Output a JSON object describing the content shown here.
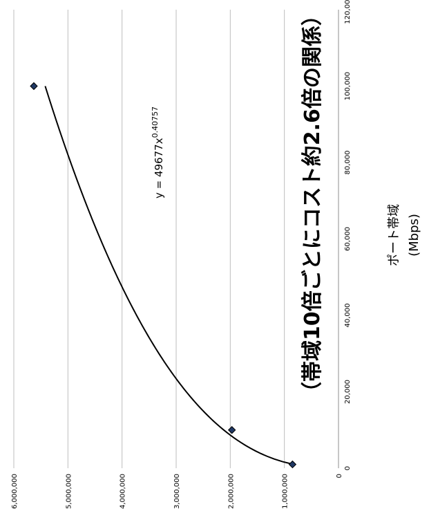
{
  "chart_data": {
    "type": "scatter",
    "x_values": [
      1000,
      10000,
      100000
    ],
    "y_values": [
      850000,
      1970000,
      5630000
    ],
    "xlim": [
      0,
      120000
    ],
    "ylim": [
      0,
      6000000
    ],
    "x_ticks": [
      "0",
      "20,000",
      "40,000",
      "60,000",
      "80,000",
      "100,000",
      "120,000"
    ],
    "y_ticks": [
      "0",
      "1,000,000",
      "2,000,000",
      "3,000,000",
      "4,000,000",
      "5,000,000",
      "6,000,000"
    ],
    "xlabel_line1": "ポート帯域",
    "xlabel_line2": "(Mbps)",
    "annotation": "（帯域10倍ごとにコスト約2.6倍の関係）",
    "trendline": {
      "type": "power",
      "coefficient": 49677,
      "exponent": 0.40757,
      "x_range": [
        1000,
        100000
      ],
      "label_base": "y = 49677x",
      "label_exp": "0.40757"
    },
    "grid": "horizontal",
    "marker_color": "#1f3864",
    "line_color": "#000000"
  }
}
